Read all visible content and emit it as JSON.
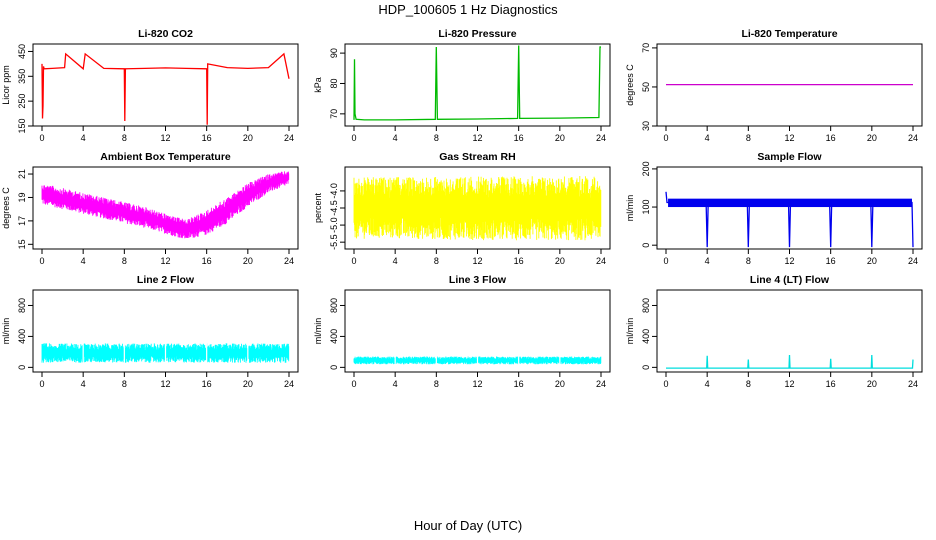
{
  "figure": {
    "title": "HDP_100605  1 Hz Diagnostics",
    "xlabel": "Hour of Day (UTC)"
  },
  "chart_data": [
    {
      "type": "line",
      "title": "Li-820 CO2",
      "ylabel": "Licor ppm",
      "color": "#ff0000",
      "xlim": [
        0,
        24
      ],
      "ylim": [
        150,
        480
      ],
      "xticks": [
        "0",
        "4",
        "8",
        "12",
        "16",
        "20",
        "24"
      ],
      "yticks": [
        "150",
        "250",
        "350",
        "450"
      ],
      "x": [
        0,
        0.05,
        0.1,
        0.15,
        0.2,
        1,
        2.2,
        2.3,
        4,
        4.2,
        6,
        8,
        8.05,
        8.1,
        10,
        12,
        14,
        16,
        16.05,
        16.1,
        18,
        20,
        22,
        23.5,
        24
      ],
      "y": [
        400,
        180,
        230,
        390,
        380,
        382,
        385,
        440,
        380,
        440,
        382,
        380,
        170,
        380,
        382,
        384,
        382,
        380,
        155,
        400,
        385,
        382,
        385,
        440,
        340
      ]
    },
    {
      "type": "line",
      "title": "Li-820 Pressure",
      "ylabel": "kPa",
      "color": "#00bb00",
      "xlim": [
        0,
        24
      ],
      "ylim": [
        66,
        93
      ],
      "xticks": [
        "0",
        "4",
        "8",
        "12",
        "16",
        "20",
        "24"
      ],
      "yticks": [
        "70",
        "80",
        "90"
      ],
      "x": [
        0,
        0.05,
        0.1,
        0.2,
        1,
        4,
        7.9,
        8.0,
        8.1,
        12,
        15.9,
        16.0,
        16.1,
        20,
        23.8,
        23.9,
        24
      ],
      "y": [
        68,
        88,
        70,
        68.2,
        68,
        68,
        68.2,
        92,
        68.2,
        68.3,
        68.5,
        92.5,
        68.5,
        68.6,
        68.8,
        92,
        92
      ]
    },
    {
      "type": "line",
      "title": "Li-820 Temperature",
      "ylabel": "degrees C",
      "color": "#cc00cc",
      "xlim": [
        0,
        24
      ],
      "ylim": [
        30,
        72
      ],
      "xticks": [
        "0",
        "4",
        "8",
        "12",
        "16",
        "20",
        "24"
      ],
      "yticks": [
        "30",
        "50",
        "70"
      ],
      "x": [
        0,
        24
      ],
      "y": [
        51.2,
        51.2
      ]
    },
    {
      "type": "area",
      "title": "Ambient Box Temperature",
      "ylabel": "degrees C",
      "color": "#ff00ff",
      "xlim": [
        0,
        24
      ],
      "ylim": [
        14.6,
        21.6
      ],
      "xticks": [
        "0",
        "4",
        "8",
        "12",
        "16",
        "20",
        "24"
      ],
      "yticks": [
        "15",
        "17",
        "19",
        "21"
      ],
      "x": [
        0,
        2,
        4,
        6,
        8,
        10,
        12,
        14,
        16,
        18,
        20,
        22,
        24
      ],
      "low": [
        18.4,
        18.0,
        17.6,
        17.2,
        16.8,
        16.4,
        15.9,
        15.4,
        15.8,
        16.8,
        18.2,
        19.4,
        20.1
      ],
      "high": [
        20.2,
        19.8,
        19.4,
        19.0,
        18.6,
        18.2,
        17.6,
        17.1,
        17.9,
        19.0,
        20.2,
        21.0,
        21.3
      ]
    },
    {
      "type": "area",
      "title": "Gas Stream RH",
      "ylabel": "percent",
      "color": "#ffff00",
      "xlim": [
        0,
        24
      ],
      "ylim": [
        -5.7,
        -3.3
      ],
      "xticks": [
        "0",
        "4",
        "8",
        "12",
        "16",
        "20",
        "24"
      ],
      "yticks": [
        "-5.5",
        "-5.0",
        "-4.5",
        "-4.0"
      ],
      "x": [
        0,
        4,
        8,
        12,
        16,
        20,
        24
      ],
      "low": [
        -5.4,
        -5.4,
        -5.42,
        -5.44,
        -5.45,
        -5.45,
        -5.45
      ],
      "high": [
        -3.6,
        -3.6,
        -3.58,
        -3.58,
        -3.57,
        -3.57,
        -3.55
      ]
    },
    {
      "type": "line",
      "title": "Sample Flow",
      "ylabel": "ml/min",
      "color": "#0000ee",
      "xlim": [
        0,
        24
      ],
      "ylim": [
        -10,
        205
      ],
      "xticks": [
        "0",
        "4",
        "8",
        "12",
        "16",
        "20",
        "24"
      ],
      "yticks": [
        "0",
        "100",
        "200"
      ],
      "x": [
        0,
        0.1,
        0.2,
        3.9,
        4.0,
        4.1,
        7.9,
        8.0,
        8.1,
        11.9,
        12.0,
        12.1,
        15.9,
        16.0,
        16.1,
        19.9,
        20.0,
        20.1,
        23.9,
        24.0
      ],
      "y": [
        140,
        112,
        112,
        112,
        -5,
        112,
        112,
        -5,
        112,
        112,
        -5,
        112,
        112,
        -5,
        112,
        112,
        -5,
        112,
        112,
        -5
      ],
      "band": [
        100,
        122
      ]
    },
    {
      "type": "area",
      "title": "Line 2 Flow",
      "ylabel": "ml/min",
      "color": "#00ffff",
      "xlim": [
        0,
        24
      ],
      "ylim": [
        -60,
        1000
      ],
      "xticks": [
        "0",
        "4",
        "8",
        "12",
        "16",
        "20",
        "24"
      ],
      "yticks": [
        "0",
        "400",
        "800"
      ],
      "x": [
        0,
        24
      ],
      "low": [
        60,
        60
      ],
      "high": [
        310,
        310
      ],
      "gaps": [
        4,
        8,
        12,
        16,
        20
      ]
    },
    {
      "type": "area",
      "title": "Line 3 Flow",
      "ylabel": "ml/min",
      "color": "#00ffff",
      "xlim": [
        0,
        24
      ],
      "ylim": [
        -60,
        1000
      ],
      "xticks": [
        "0",
        "4",
        "8",
        "12",
        "16",
        "20",
        "24"
      ],
      "yticks": [
        "0",
        "400",
        "800"
      ],
      "x": [
        0,
        24
      ],
      "low": [
        40,
        40
      ],
      "high": [
        140,
        140
      ],
      "gaps": [
        4,
        8,
        12,
        16,
        20
      ]
    },
    {
      "type": "line",
      "title": "Line 4 (LT) Flow",
      "ylabel": "ml/min",
      "color": "#00dddd",
      "xlim": [
        0,
        24
      ],
      "ylim": [
        -60,
        1000
      ],
      "xticks": [
        "0",
        "4",
        "8",
        "12",
        "16",
        "20",
        "24"
      ],
      "yticks": [
        "0",
        "400",
        "800"
      ],
      "x": [
        0,
        3.95,
        4.0,
        4.05,
        7.95,
        8.0,
        8.05,
        11.95,
        12.0,
        12.05,
        15.95,
        16.0,
        16.05,
        19.95,
        20.0,
        20.05,
        23.95,
        24.0
      ],
      "y": [
        -10,
        -10,
        150,
        -10,
        -10,
        100,
        -10,
        -10,
        160,
        -10,
        -10,
        110,
        -10,
        -10,
        160,
        -10,
        -10,
        100
      ]
    }
  ]
}
